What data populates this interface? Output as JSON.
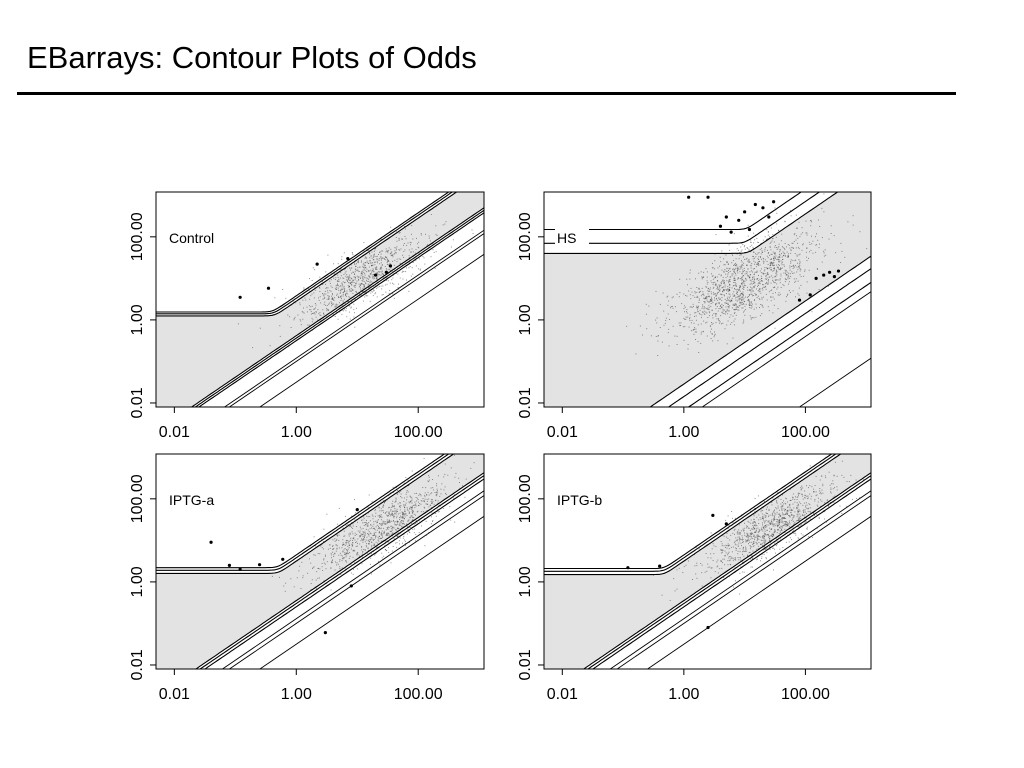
{
  "slide": {
    "title": "EBarrays: Contour Plots of Odds"
  },
  "colors": {
    "background": "#ffffff",
    "band_fill": "#e3e3e3",
    "contour": "#000000",
    "points": "#3a3a3a",
    "highlight_points": "#000000"
  },
  "chart_data": [
    {
      "type": "scatter",
      "panel": "Control",
      "xscale": "log",
      "yscale": "log",
      "xlim": [
        0.005,
        1200
      ],
      "ylim": [
        0.008,
        1200
      ],
      "xticks": [
        0.01,
        1,
        100
      ],
      "xtick_labels": [
        "0.01",
        "1.00",
        "100.00"
      ],
      "yticks": [
        0.01,
        1,
        100
      ],
      "ytick_labels": [
        "0.01",
        "1.00",
        "100.00"
      ],
      "cloud": {
        "center": [
          12,
          10
        ],
        "spread_log10": [
          0.7,
          0.25
        ],
        "n_points": 900
      },
      "highlighted_points": [
        [
          0.12,
          3.5
        ],
        [
          0.35,
          5.8
        ],
        [
          2.2,
          22
        ],
        [
          7,
          30
        ],
        [
          20,
          12
        ],
        [
          30,
          14
        ],
        [
          35,
          20
        ]
      ],
      "upper_band": {
        "asymptote_y": [
          1.25,
          1.4,
          1.55
        ],
        "slope_offsets": [
          0.45,
          0.52,
          0.58
        ]
      },
      "lower_band": {
        "asymptote_x": [
          1.3,
          1.5,
          1.75
        ],
        "slope_offsets": [
          -0.38,
          -0.44,
          -0.5
        ]
      },
      "diagonals": [
        0.1,
        0.12
      ]
    },
    {
      "type": "scatter",
      "panel": "HS",
      "xscale": "log",
      "yscale": "log",
      "xlim": [
        0.005,
        1200
      ],
      "ylim": [
        0.008,
        1200
      ],
      "xticks": [
        0.01,
        1,
        100
      ],
      "xtick_labels": [
        "0.01",
        "1.00",
        "100.00"
      ],
      "yticks": [
        0.01,
        1,
        100
      ],
      "ytick_labels": [
        "0.01",
        "1.00",
        "100.00"
      ],
      "cloud": {
        "center": [
          10,
          8
        ],
        "spread_log10": [
          0.8,
          0.35
        ],
        "n_points": 1400
      },
      "highlighted_points": [
        [
          1.2,
          900
        ],
        [
          2.5,
          900
        ],
        [
          5,
          300
        ],
        [
          8,
          250
        ],
        [
          10,
          400
        ],
        [
          15,
          600
        ],
        [
          20,
          500
        ],
        [
          12,
          150
        ],
        [
          25,
          300
        ],
        [
          30,
          700
        ],
        [
          6,
          130
        ],
        [
          4,
          180
        ],
        [
          150,
          10
        ],
        [
          200,
          12
        ],
        [
          250,
          14
        ],
        [
          300,
          11
        ],
        [
          350,
          15
        ],
        [
          120,
          4
        ],
        [
          80,
          3
        ]
      ],
      "upper_band": {
        "asymptote_y": [
          40,
          70,
          150
        ],
        "slope_offsets": [
          0.55,
          0.85,
          1.15
        ]
      },
      "lower_band": {
        "asymptote_x": [
          35,
          70,
          150
        ],
        "slope_offsets": [
          -0.55,
          -0.85,
          -1.15
        ]
      },
      "diagonals": [
        0.0001
      ]
    },
    {
      "type": "scatter",
      "panel": "IPTG-a",
      "xscale": "log",
      "yscale": "log",
      "xlim": [
        0.005,
        1200
      ],
      "ylim": [
        0.008,
        1200
      ],
      "xticks": [
        0.01,
        1,
        100
      ],
      "xtick_labels": [
        "0.01",
        "1.00",
        "100.00"
      ],
      "yticks": [
        0.01,
        1,
        100
      ],
      "ytick_labels": [
        "0.01",
        "1.00",
        "100.00"
      ],
      "cloud": {
        "center": [
          25,
          20
        ],
        "spread_log10": [
          0.75,
          0.25
        ],
        "n_points": 1000
      },
      "highlighted_points": [
        [
          0.04,
          9
        ],
        [
          0.08,
          2.5
        ],
        [
          0.12,
          2.0
        ],
        [
          0.25,
          2.6
        ],
        [
          0.6,
          3.5
        ],
        [
          10,
          55
        ],
        [
          8,
          0.8
        ],
        [
          3,
          0.06
        ]
      ],
      "upper_band": {
        "asymptote_y": [
          1.6,
          1.9,
          2.2
        ],
        "slope_offsets": [
          0.5,
          0.58,
          0.65
        ]
      },
      "lower_band": {
        "asymptote_x": [
          1.6,
          1.9,
          2.2
        ],
        "slope_offsets": [
          -0.45,
          -0.52,
          -0.6
        ]
      },
      "diagonals": [
        0.1,
        0.13
      ]
    },
    {
      "type": "scatter",
      "panel": "IPTG-b",
      "xscale": "log",
      "yscale": "log",
      "xlim": [
        0.005,
        1200
      ],
      "ylim": [
        0.008,
        1200
      ],
      "xticks": [
        0.01,
        1,
        100
      ],
      "xtick_labels": [
        "0.01",
        "1.00",
        "100.00"
      ],
      "yticks": [
        0.01,
        1,
        100
      ],
      "ytick_labels": [
        "0.01",
        "1.00",
        "100.00"
      ],
      "cloud": {
        "center": [
          25,
          20
        ],
        "spread_log10": [
          0.75,
          0.25
        ],
        "n_points": 1000
      },
      "highlighted_points": [
        [
          0.12,
          2.2
        ],
        [
          0.4,
          2.4
        ],
        [
          3,
          40
        ],
        [
          5,
          25
        ],
        [
          2.5,
          0.08
        ]
      ],
      "upper_band": {
        "asymptote_y": [
          1.5,
          1.8,
          2.1
        ],
        "slope_offsets": [
          0.5,
          0.58,
          0.65
        ]
      },
      "lower_band": {
        "asymptote_x": [
          1.8,
          2.1,
          2.5
        ],
        "slope_offsets": [
          -0.45,
          -0.52,
          -0.6
        ]
      },
      "diagonals": [
        0.1,
        0.13
      ]
    }
  ]
}
